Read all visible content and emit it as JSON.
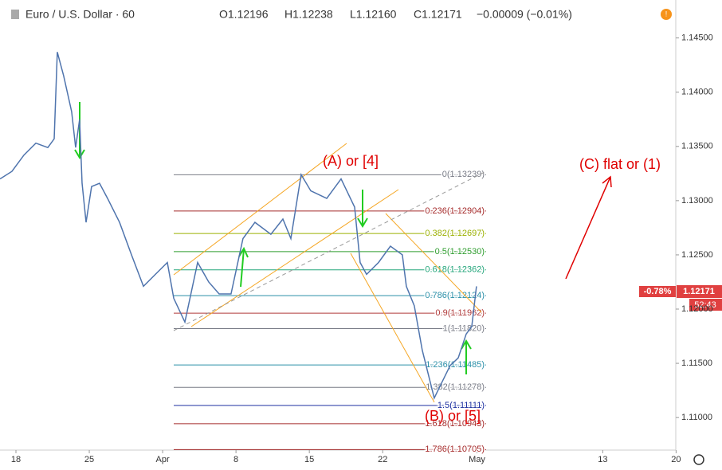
{
  "header": {
    "symbol": "Euro / U.S. Dollar · 60",
    "open": "O1.12196",
    "high": "H1.12238",
    "low": "L1.12160",
    "close": "C1.12171",
    "change": "−0.00009 (−0.01%)"
  },
  "price_tag": {
    "percent": "-0.78%",
    "price": "1.12171",
    "countdown": "52:43"
  },
  "chart_data": {
    "type": "line",
    "annotations": [
      "(A) or [4]",
      "(B) or [5]",
      "(C) flat or (1)"
    ],
    "x": [
      -1.52,
      -0.38,
      0.76,
      1.9,
      3.04,
      3.65,
      3.95,
      4.56,
      5.32,
      5.7,
      6.08,
      6.31,
      6.69,
      7.22,
      7.98,
      8.75,
      9.89,
      11.03,
      12.17,
      13.31,
      14.45,
      15.06,
      16.12,
      17.34,
      18.4,
      19.39,
      20.53,
      21.67,
      22.81,
      24.33,
      25.48,
      26.24,
      27.22,
      28.14,
      29.66,
      31.03,
      32.32,
      32.85,
      33.46,
      34.6,
      35.74,
      36.88,
      37.26,
      38.02,
      38.78,
      39.92,
      40.68,
      41.44,
      42.21,
      42.97,
      43.5,
      43.95
    ],
    "series": [
      {
        "color": "#4f74ad",
        "values": [
          1.132,
          1.1327,
          1.1342,
          1.1353,
          1.1349,
          1.1357,
          1.1437,
          1.1415,
          1.1382,
          1.1349,
          1.1375,
          1.1316,
          1.128,
          1.1313,
          1.1316,
          1.1302,
          1.128,
          1.125,
          1.1221,
          1.1232,
          1.1243,
          1.121,
          1.1188,
          1.1243,
          1.1225,
          1.1214,
          1.1214,
          1.1265,
          1.128,
          1.1269,
          1.1283,
          1.1265,
          1.1324,
          1.1309,
          1.1302,
          1.132,
          1.1294,
          1.1243,
          1.1232,
          1.1243,
          1.1258,
          1.125,
          1.1221,
          1.1203,
          1.1162,
          1.1118,
          1.1133,
          1.1148,
          1.1155,
          1.1177,
          1.1184,
          1.1221
        ]
      }
    ],
    "xlim": [
      -1.52,
      62.97
    ],
    "xticks": [
      {
        "value": 0,
        "label": "18"
      },
      {
        "value": 7,
        "label": "25"
      },
      {
        "value": 14,
        "label": "Apr"
      },
      {
        "value": 21,
        "label": "8"
      },
      {
        "value": 28,
        "label": "15"
      },
      {
        "value": 35,
        "label": "22"
      },
      {
        "value": 44,
        "label": "May"
      },
      {
        "value": 56,
        "label": "13"
      },
      {
        "value": 63,
        "label": "20"
      }
    ],
    "ylim": [
      1.107,
      1.1485
    ],
    "yticks": [
      {
        "value": 1.11,
        "label": "1.11000"
      },
      {
        "value": 1.115,
        "label": "1.11500"
      },
      {
        "value": 1.12,
        "label": "1.12000"
      },
      {
        "value": 1.125,
        "label": "1.12500"
      },
      {
        "value": 1.13,
        "label": "1.13000"
      },
      {
        "value": 1.135,
        "label": "1.13500"
      },
      {
        "value": 1.14,
        "label": "1.14000"
      },
      {
        "value": 1.145,
        "label": "1.14500"
      }
    ],
    "fib_levels": [
      {
        "label": "0(1.13239)",
        "value": 1.13239,
        "color": "#787b86"
      },
      {
        "label": "0.236(1.12904)",
        "value": 1.12904,
        "color": "#a52a2a"
      },
      {
        "label": "0.382(1.12697)",
        "value": 1.12697,
        "color": "#9bb000"
      },
      {
        "label": "0.5(1.12530)",
        "value": 1.1253,
        "color": "#2e9d2e"
      },
      {
        "label": "0.618(1.12362)",
        "value": 1.12362,
        "color": "#22a57a"
      },
      {
        "label": "0.786(1.12124)",
        "value": 1.12124,
        "color": "#2a8fa8"
      },
      {
        "label": "0.9(1.11962)",
        "value": 1.11962,
        "color": "#b03a3a"
      },
      {
        "label": "1(1.11820)",
        "value": 1.1182,
        "color": "#787b86"
      },
      {
        "label": "1.236(1.11485)",
        "value": 1.11485,
        "color": "#2a8fa8"
      },
      {
        "label": "1.382(1.11278)",
        "value": 1.11278,
        "color": "#787b86"
      },
      {
        "label": "1.5(1.11111)",
        "value": 1.11111,
        "color": "#1c2fa0"
      },
      {
        "label": "1.618(1.10943)",
        "value": 1.10943,
        "color": "#a52a2a"
      },
      {
        "label": "1.786(1.10705)",
        "value": 1.10705,
        "color": "#a52a2a"
      }
    ]
  }
}
